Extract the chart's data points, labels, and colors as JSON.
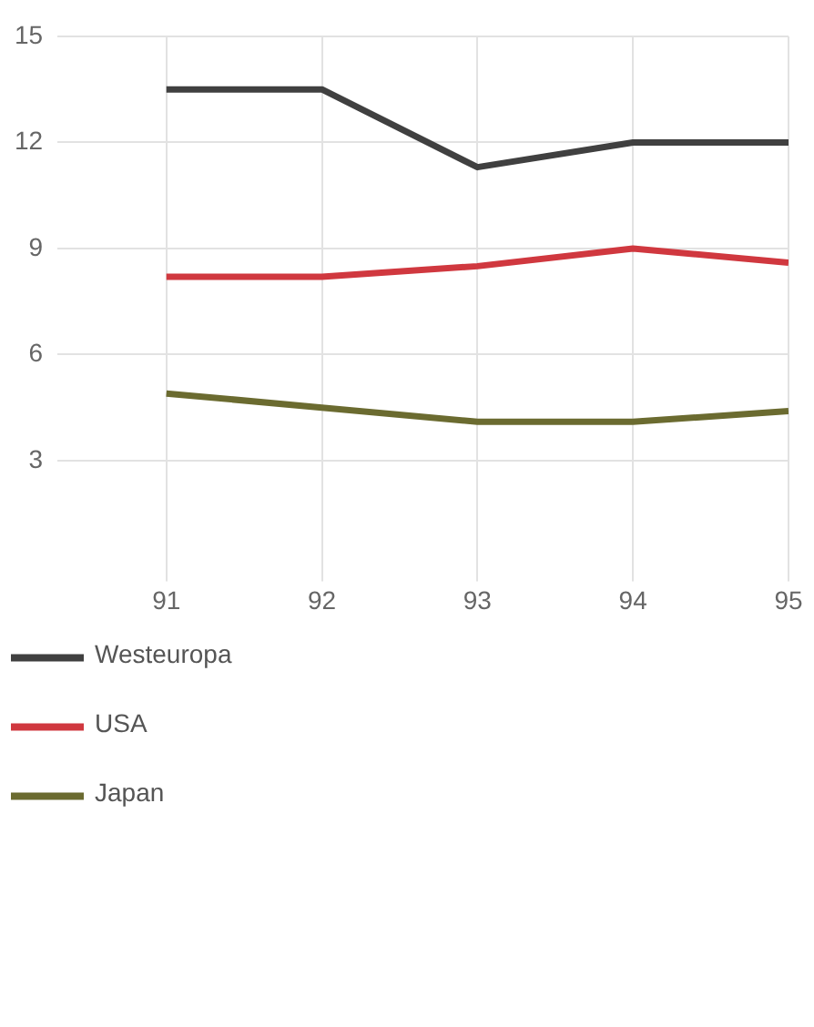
{
  "chart_data": {
    "type": "line",
    "x": [
      91,
      92,
      93,
      94,
      95
    ],
    "xlim": [
      90.3,
      95
    ],
    "xticks": [
      91,
      92,
      93,
      94,
      95
    ],
    "ylim": [
      0,
      15
    ],
    "yticks": [
      3,
      6,
      9,
      12,
      15
    ],
    "grid": true,
    "legend": "bottom",
    "series": [
      {
        "name": "Westeuropa",
        "color": "#404040",
        "values": [
          13.5,
          13.5,
          11.3,
          12.0,
          12.0
        ]
      },
      {
        "name": "USA",
        "color": "#d0383f",
        "values": [
          8.2,
          8.2,
          8.5,
          9.0,
          8.6
        ]
      },
      {
        "name": "Japan",
        "color": "#6b6b30",
        "values": [
          4.9,
          4.5,
          4.1,
          4.1,
          4.4
        ]
      }
    ]
  }
}
